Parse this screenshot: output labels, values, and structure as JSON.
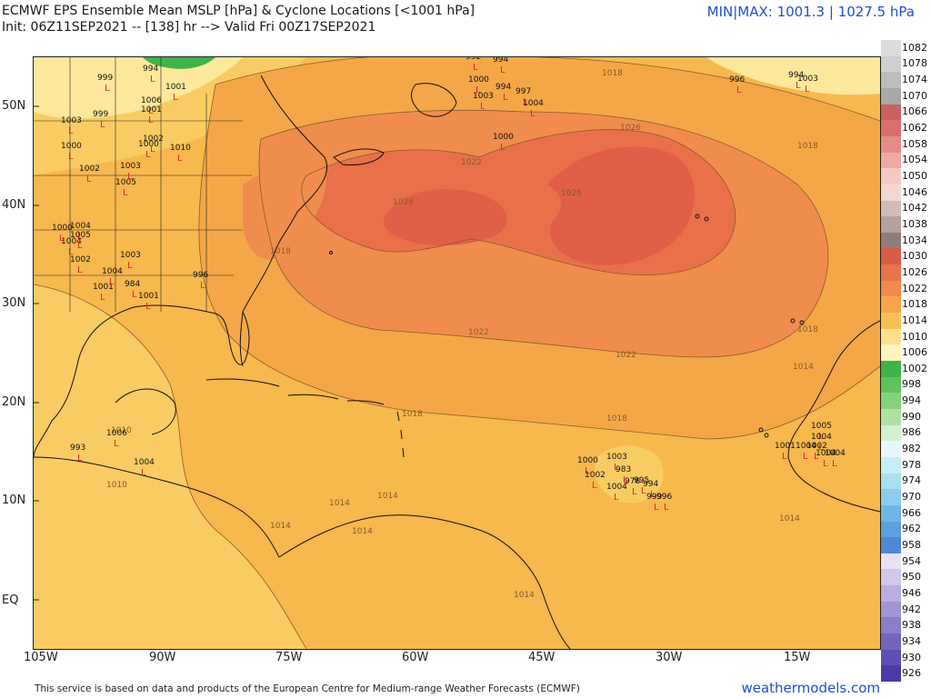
{
  "header": {
    "title": "ECMWF EPS Ensemble Mean MSLP [hPa] & Cyclone Locations [<1001 hPa]",
    "init": "Init: 06Z11SEP2021 -- [138] hr --> Valid Fri 00Z17SEP2021",
    "minmax": "MIN|MAX: 1001.3 | 1027.5 hPa"
  },
  "footer": {
    "disclaimer": "This service is based on data and products of the European Centre for Medium-range Weather Forecasts (ECMWF)",
    "brand": "weathermodels.com"
  },
  "axes": {
    "lat_labels": [
      "50N",
      "40N",
      "30N",
      "20N",
      "10N",
      "EQ"
    ],
    "lon_labels": [
      "105W",
      "90W",
      "75W",
      "60W",
      "45W",
      "30W",
      "15W"
    ]
  },
  "colorbar": {
    "levels": [
      "1082",
      "1078",
      "1074",
      "1070",
      "1066",
      "1062",
      "1058",
      "1054",
      "1050",
      "1046",
      "1042",
      "1038",
      "1034",
      "1030",
      "1026",
      "1022",
      "1018",
      "1014",
      "1010",
      "1006",
      "1002",
      "998",
      "994",
      "990",
      "986",
      "982",
      "978",
      "974",
      "970",
      "966",
      "962",
      "958",
      "954",
      "950",
      "946",
      "942",
      "938",
      "934",
      "930",
      "926"
    ],
    "colors": [
      "#dcdcdc",
      "#cfcfcf",
      "#bdbdbd",
      "#a8a8a8",
      "#c9625f",
      "#d96e6a",
      "#e48d88",
      "#eeaaa5",
      "#f5c8c3",
      "#f2d7d2",
      "#d2bcb8",
      "#b5a19d",
      "#8e7e7a",
      "#d95b48",
      "#e8734d",
      "#f08a4d",
      "#f6a54b",
      "#f9c14f",
      "#fce08a",
      "#fff3c2",
      "#40b34a",
      "#61c25c",
      "#86d27c",
      "#aee2a4",
      "#d3f0cf",
      "#e6f7fb",
      "#c8eef8",
      "#a8e0f2",
      "#8ccdee",
      "#6fb6e7",
      "#5d9fdf",
      "#4f86d6",
      "#e6e2f3",
      "#cfc8ea",
      "#b8aee0",
      "#a195d5",
      "#8a7dca",
      "#7466bf",
      "#5d4fb3",
      "#4a3ba7"
    ]
  },
  "isobar_labels": [
    "1018",
    "1022",
    "1026",
    "1026",
    "1026",
    "1022",
    "1022",
    "1018",
    "1018",
    "1018",
    "1014",
    "1014",
    "1014",
    "1014",
    "1014",
    "1010",
    "1010",
    "1014",
    "1018",
    "1018",
    "1014"
  ],
  "cyclones": [
    {
      "v": "994"
    },
    {
      "v": "999"
    },
    {
      "v": "1001"
    },
    {
      "v": "1003"
    },
    {
      "v": "999"
    },
    {
      "v": "1006"
    },
    {
      "v": "1001"
    },
    {
      "v": "1000"
    },
    {
      "v": "1002"
    },
    {
      "v": "1010"
    },
    {
      "v": "1005"
    },
    {
      "v": "1003"
    },
    {
      "v": "1000"
    },
    {
      "v": "1002"
    },
    {
      "v": "1004"
    },
    {
      "v": "1003"
    },
    {
      "v": "1001"
    },
    {
      "v": "1004"
    },
    {
      "v": "984"
    },
    {
      "v": "1001"
    },
    {
      "v": "996"
    },
    {
      "v": "1000"
    },
    {
      "v": "1004"
    },
    {
      "v": "1005"
    },
    {
      "v": "1002"
    },
    {
      "v": "993"
    },
    {
      "v": "1006"
    },
    {
      "v": "1004"
    },
    {
      "v": "992"
    },
    {
      "v": "994"
    },
    {
      "v": "1000"
    },
    {
      "v": "1003"
    },
    {
      "v": "994"
    },
    {
      "v": "997"
    },
    {
      "v": "1004"
    },
    {
      "v": "1000"
    },
    {
      "v": "996"
    },
    {
      "v": "994"
    },
    {
      "v": "1003"
    },
    {
      "v": "1000"
    },
    {
      "v": "1003"
    },
    {
      "v": "1002"
    },
    {
      "v": "983"
    },
    {
      "v": "976"
    },
    {
      "v": "995"
    },
    {
      "v": "994"
    },
    {
      "v": "999"
    },
    {
      "v": "996"
    },
    {
      "v": "1004"
    },
    {
      "v": "1005"
    },
    {
      "v": "1004"
    },
    {
      "v": "1002"
    },
    {
      "v": "1001"
    },
    {
      "v": "1004"
    },
    {
      "v": "1004"
    },
    {
      "v": "1004"
    }
  ],
  "colors": {
    "field_1014": "#f7b84e",
    "field_1018": "#f5a748",
    "field_1010": "#f9cc63",
    "field_1022": "#f08d4c",
    "field_1026": "#e8714a",
    "field_1030": "#d95b48",
    "field_1006": "#fde89c",
    "field_1002": "#fff5c6",
    "low_green": "#40b34a",
    "cyclone_marker": "#e0262a",
    "coast": "#111111",
    "isobar": "#8a5a2a"
  }
}
